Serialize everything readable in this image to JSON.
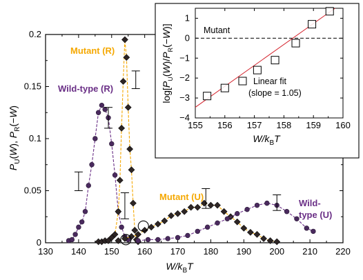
{
  "chart_data": [
    {
      "type": "line",
      "xlabel": "W/kBT",
      "ylabel": "PU(W), PR(−W)",
      "xlim": [
        130,
        220
      ],
      "ylim": [
        0,
        0.2
      ],
      "x_ticks": [
        "130",
        "140",
        "150",
        "160",
        "170",
        "180",
        "190",
        "200",
        "210",
        "220"
      ],
      "y_ticks": [
        "0",
        "0.05",
        "0.1",
        "0.15",
        "0.2"
      ],
      "annotations": {
        "mutant_r": "Mutant (R)",
        "wildtype_r": "Wild-type (R)",
        "mutant_u": "Mutant (U)",
        "wildtype_u_1": "Wild-",
        "wildtype_u_2": "type (U)"
      },
      "colors": {
        "mutant": "#f5a800",
        "wildtype": "#6a2f86",
        "marker": "#2d2525"
      },
      "series": [
        {
          "name": "Wild-type (R)",
          "points": [
            [
              137,
              0.002
            ],
            [
              138,
              0.003
            ],
            [
              139,
              0.008
            ],
            [
              140,
              0.015
            ],
            [
              141,
              0.02
            ],
            [
              142,
              0.03
            ],
            [
              143,
              0.055
            ],
            [
              144,
              0.075
            ],
            [
              145,
              0.1
            ],
            [
              146,
              0.125
            ],
            [
              147,
              0.132
            ],
            [
              148,
              0.128
            ],
            [
              149,
              0.12
            ],
            [
              150,
              0.095
            ],
            [
              151,
              0.065
            ],
            [
              152,
              0.03
            ],
            [
              153,
              0.015
            ],
            [
              154,
              0.006
            ],
            [
              155,
              0.003
            ]
          ]
        },
        {
          "name": "Mutant (R)",
          "points": [
            [
              146,
              0.001
            ],
            [
              147,
              0.001
            ],
            [
              148,
              0.002
            ],
            [
              149,
              0.002
            ],
            [
              150,
              0.005
            ],
            [
              151,
              0.008
            ],
            [
              152,
              0.03
            ],
            [
              152.5,
              0.06
            ],
            [
              153,
              0.11
            ],
            [
              153.5,
              0.155
            ],
            [
              154,
              0.195
            ],
            [
              154.5,
              0.178
            ],
            [
              155,
              0.13
            ],
            [
              155.5,
              0.09
            ],
            [
              156,
              0.07
            ],
            [
              156.5,
              0.038
            ],
            [
              157,
              0.012
            ],
            [
              157.5,
              0.003
            ],
            [
              158,
              0.001
            ]
          ]
        },
        {
          "name": "Mutant (U)",
          "points": [
            [
              152,
              0.002
            ],
            [
              154,
              0.004
            ],
            [
              156,
              0.006
            ],
            [
              158,
              0.008
            ],
            [
              160,
              0.012
            ],
            [
              162,
              0.015
            ],
            [
              164,
              0.018
            ],
            [
              166,
              0.021
            ],
            [
              168,
              0.026
            ],
            [
              170,
              0.028
            ],
            [
              172,
              0.03
            ],
            [
              174,
              0.034
            ],
            [
              176,
              0.034
            ],
            [
              178,
              0.038
            ],
            [
              180,
              0.036
            ],
            [
              182,
              0.036
            ],
            [
              184,
              0.03
            ],
            [
              186,
              0.025
            ],
            [
              188,
              0.02
            ],
            [
              190,
              0.014
            ],
            [
              192,
              0.01
            ],
            [
              194,
              0.008
            ],
            [
              196,
              0.004
            ],
            [
              198,
              0.002
            ],
            [
              200,
              0.001
            ]
          ]
        },
        {
          "name": "Wild-type (U)",
          "points": [
            [
              158,
              0.002
            ],
            [
              161,
              0.003
            ],
            [
              164,
              0.003
            ],
            [
              167,
              0.004
            ],
            [
              170,
              0.005
            ],
            [
              173,
              0.007
            ],
            [
              176,
              0.011
            ],
            [
              179,
              0.015
            ],
            [
              182,
              0.019
            ],
            [
              185,
              0.023
            ],
            [
              188,
              0.028
            ],
            [
              191,
              0.032
            ],
            [
              194,
              0.036
            ],
            [
              197,
              0.038
            ],
            [
              200,
              0.036
            ],
            [
              203,
              0.03
            ],
            [
              206,
              0.023
            ],
            [
              209,
              0.014
            ],
            [
              211,
              0.011
            ]
          ]
        }
      ],
      "error_bars": [
        {
          "x": 140,
          "lo": 0.05,
          "hi": 0.068
        },
        {
          "x": 149,
          "lo": 0.11,
          "hi": 0.13
        },
        {
          "x": 154,
          "lo": 0.023,
          "hi": 0.048
        },
        {
          "x": 157.3,
          "lo": 0.148,
          "hi": 0.165
        },
        {
          "x": 178.5,
          "lo": 0.033,
          "hi": 0.052
        },
        {
          "x": 200,
          "lo": 0.031,
          "hi": 0.046
        }
      ],
      "circled_points": [
        [
          154.3,
          0.003
        ],
        [
          159.6,
          0.016
        ]
      ]
    },
    {
      "type": "scatter",
      "xlabel": "W/kBT",
      "ylabel": "log[PU(W)/PR(−W)]",
      "xlim": [
        155,
        160
      ],
      "ylim": [
        -4,
        1.5
      ],
      "x_ticks": [
        "155",
        "156",
        "157",
        "158",
        "159",
        "160"
      ],
      "y_ticks": [
        "−4",
        "−3",
        "−2",
        "−1",
        "0",
        "1"
      ],
      "label": "Mutant",
      "fit_label_1": "Linear fit",
      "fit_label_2": "(slope = 1.05)",
      "points": [
        [
          155.4,
          -2.9
        ],
        [
          156.0,
          -2.5
        ],
        [
          156.6,
          -2.15
        ],
        [
          157.1,
          -1.6
        ],
        [
          157.7,
          -1.1
        ],
        [
          158.4,
          -0.25
        ],
        [
          158.95,
          0.7
        ],
        [
          159.55,
          1.35
        ]
      ],
      "fit": {
        "slope": 1.05,
        "x0": 158.3,
        "y0": 0
      }
    }
  ]
}
